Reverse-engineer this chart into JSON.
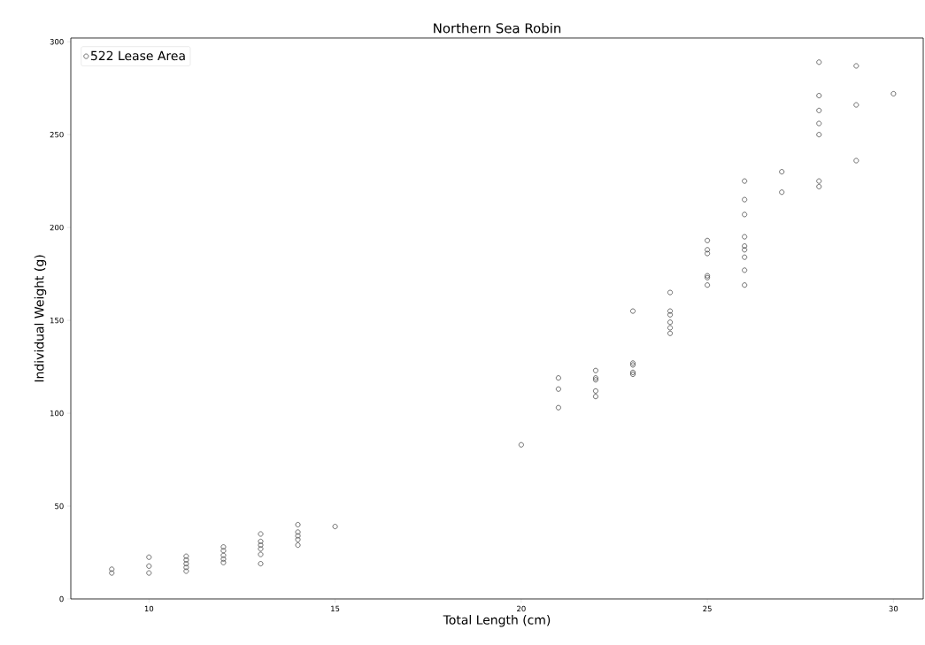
{
  "chart_data": {
    "type": "scatter",
    "title": "Northern Sea Robin",
    "xlabel": "Total Length (cm)",
    "ylabel": "Individual Weight (g)",
    "x": [
      9,
      9,
      10,
      10,
      10,
      11,
      11,
      11,
      11,
      11,
      12,
      12,
      12,
      12,
      12,
      13,
      13,
      13,
      13,
      13,
      13,
      14,
      14,
      14,
      14,
      14,
      15,
      20,
      21,
      21,
      21,
      22,
      22,
      22,
      22,
      22,
      23,
      23,
      23,
      23,
      23,
      24,
      24,
      24,
      24,
      24,
      24,
      25,
      25,
      25,
      25,
      25,
      25,
      26,
      26,
      26,
      26,
      26,
      26,
      26,
      26,
      26,
      27,
      27,
      28,
      28,
      28,
      28,
      28,
      28,
      28,
      29,
      29,
      29,
      30
    ],
    "series": [
      {
        "name": "522 Lease Area",
        "color": "#333333",
        "values": [
          16,
          14,
          22.5,
          17.7,
          14,
          23,
          21,
          19,
          17,
          15,
          28,
          26,
          23.5,
          21.5,
          19.6,
          35,
          31,
          29,
          27,
          24,
          19,
          40,
          36,
          34,
          32,
          29,
          39,
          83,
          119,
          113,
          103,
          123,
          119,
          118,
          112,
          109,
          155,
          127,
          126,
          122,
          121,
          165,
          155,
          153,
          149,
          146,
          143,
          193,
          188,
          186,
          174,
          173,
          169,
          225,
          215,
          207,
          195,
          190,
          188,
          184,
          177,
          169,
          230,
          219,
          225,
          222,
          289,
          271,
          263,
          256,
          250,
          287,
          266,
          236,
          272
        ]
      }
    ],
    "xlim": [
      7.9,
      30.8
    ],
    "ylim": [
      0,
      302
    ],
    "xticks": [
      10,
      15,
      20,
      25,
      30
    ],
    "yticks": [
      0,
      50,
      100,
      150,
      200,
      250,
      300
    ],
    "marker": "circle",
    "legend": "top left",
    "grid": false
  }
}
